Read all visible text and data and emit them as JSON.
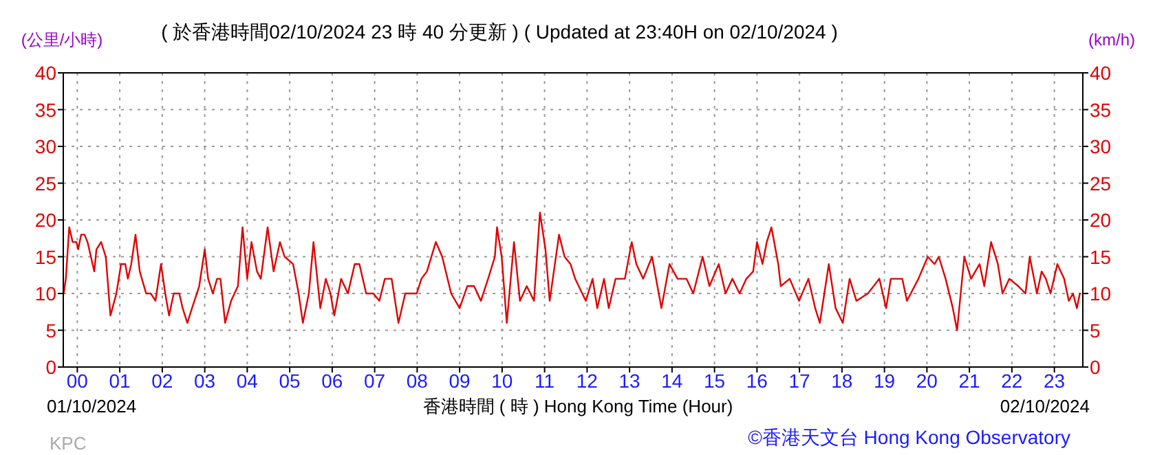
{
  "chart_data": {
    "type": "line",
    "title": "( 於香港時間02/10/2024 23 時 40 分更新 ) ( Updated at 23:40H on 02/10/2024 )",
    "xlabel": "香港時間 ( 時 ) Hong Kong Time (Hour)",
    "ylabel": "(公里/小時)",
    "y2label": "(km/h)",
    "annotations": [
      "01/10/2024",
      "02/10/2024",
      "KPC",
      "©香港天文台 Hong Kong Observatory"
    ],
    "xlim": [
      -0.33,
      23.67
    ],
    "xticks": [
      {
        "value": 0,
        "label": "00"
      },
      {
        "value": 1,
        "label": "01"
      },
      {
        "value": 2,
        "label": "02"
      },
      {
        "value": 3,
        "label": "03"
      },
      {
        "value": 4,
        "label": "04"
      },
      {
        "value": 5,
        "label": "05"
      },
      {
        "value": 6,
        "label": "06"
      },
      {
        "value": 7,
        "label": "07"
      },
      {
        "value": 8,
        "label": "08"
      },
      {
        "value": 9,
        "label": "09"
      },
      {
        "value": 10,
        "label": "10"
      },
      {
        "value": 11,
        "label": "11"
      },
      {
        "value": 12,
        "label": "12"
      },
      {
        "value": 13,
        "label": "13"
      },
      {
        "value": 14,
        "label": "14"
      },
      {
        "value": 15,
        "label": "15"
      },
      {
        "value": 16,
        "label": "16"
      },
      {
        "value": 17,
        "label": "17"
      },
      {
        "value": 18,
        "label": "18"
      },
      {
        "value": 19,
        "label": "19"
      },
      {
        "value": 20,
        "label": "20"
      },
      {
        "value": 21,
        "label": "21"
      },
      {
        "value": 22,
        "label": "22"
      },
      {
        "value": 23,
        "label": "23"
      }
    ],
    "ylim": [
      0,
      40
    ],
    "yticks": [
      0,
      5,
      10,
      15,
      20,
      25,
      30,
      35,
      40
    ],
    "y2lim": [
      0,
      40
    ],
    "y2ticks": [
      0,
      5,
      10,
      15,
      20,
      25,
      30,
      35,
      40
    ],
    "grid": true,
    "series": [
      {
        "color": "#e00000",
        "x": [
          -0.32,
          -0.27,
          -0.19,
          -0.11,
          -0.02,
          0.02,
          0.09,
          0.17,
          0.24,
          0.32,
          0.4,
          0.45,
          0.56,
          0.67,
          0.78,
          0.92,
          1.03,
          1.13,
          1.19,
          1.27,
          1.37,
          1.47,
          1.62,
          1.73,
          1.84,
          1.97,
          2.07,
          2.16,
          2.27,
          2.4,
          2.48,
          2.59,
          2.7,
          2.87,
          3.0,
          3.08,
          3.19,
          3.29,
          3.37,
          3.48,
          3.62,
          3.78,
          3.89,
          4.0,
          4.1,
          4.23,
          4.32,
          4.48,
          4.62,
          4.77,
          4.88,
          5.08,
          5.21,
          5.31,
          5.45,
          5.56,
          5.72,
          5.85,
          5.96,
          6.05,
          6.21,
          6.37,
          6.53,
          6.64,
          6.8,
          6.97,
          7.11,
          7.24,
          7.4,
          7.56,
          7.72,
          7.83,
          7.99,
          8.1,
          8.23,
          8.44,
          8.59,
          8.8,
          9.0,
          9.18,
          9.34,
          9.5,
          9.67,
          9.83,
          9.88,
          9.99,
          10.11,
          10.28,
          10.42,
          10.58,
          10.75,
          10.89,
          11.02,
          11.12,
          11.34,
          11.47,
          11.61,
          11.72,
          11.97,
          12.13,
          12.24,
          12.4,
          12.51,
          12.67,
          12.89,
          13.05,
          13.16,
          13.32,
          13.53,
          13.75,
          13.94,
          14.13,
          14.34,
          14.5,
          14.72,
          14.88,
          15.1,
          15.26,
          15.42,
          15.59,
          15.75,
          15.91,
          16.0,
          16.13,
          16.23,
          16.34,
          16.5,
          16.56,
          16.77,
          16.99,
          17.21,
          17.37,
          17.48,
          17.69,
          17.85,
          18.02,
          18.18,
          18.34,
          18.61,
          18.88,
          19.04,
          19.15,
          19.42,
          19.53,
          19.8,
          20.02,
          20.18,
          20.28,
          20.44,
          20.61,
          20.71,
          20.88,
          21.04,
          21.24,
          21.35,
          21.51,
          21.67,
          21.78,
          21.94,
          22.15,
          22.32,
          22.42,
          22.59,
          22.7,
          22.8,
          22.91,
          23.07,
          23.23,
          23.34,
          23.44,
          23.53,
          23.6
        ],
        "values": [
          10,
          12,
          19,
          17,
          17,
          16,
          18,
          18,
          17,
          15,
          13,
          16,
          17,
          15,
          7,
          10,
          14,
          14,
          12,
          14,
          18,
          13,
          10,
          10,
          9,
          14,
          10,
          7,
          10,
          10,
          8,
          6,
          8,
          11,
          16,
          12,
          10,
          12,
          12,
          6,
          9,
          11,
          19,
          12,
          17,
          13,
          12,
          19,
          13,
          17,
          15,
          14,
          10,
          6,
          10,
          17,
          8,
          12,
          10,
          7,
          12,
          10,
          14,
          14,
          10,
          10,
          9,
          12,
          12,
          6,
          10,
          10,
          10,
          12,
          13,
          17,
          15,
          10,
          8,
          11,
          11,
          9,
          12,
          15,
          19,
          15,
          6,
          17,
          9,
          11,
          9,
          21,
          16,
          9,
          18,
          15,
          14,
          12,
          9,
          12,
          8,
          12,
          8,
          12,
          12,
          17,
          14,
          12,
          15,
          8,
          14,
          12,
          12,
          10,
          15,
          11,
          14,
          10,
          12,
          10,
          12,
          13,
          17,
          14,
          17,
          19,
          14,
          11,
          12,
          9,
          12,
          8,
          6,
          14,
          8,
          6,
          12,
          9,
          10,
          12,
          8,
          12,
          12,
          9,
          12,
          15,
          14,
          15,
          12,
          8,
          5,
          15,
          12,
          14,
          11,
          17,
          14,
          10,
          12,
          11,
          10,
          15,
          10,
          13,
          12,
          10,
          14,
          12,
          9,
          10,
          8,
          10
        ]
      }
    ]
  }
}
